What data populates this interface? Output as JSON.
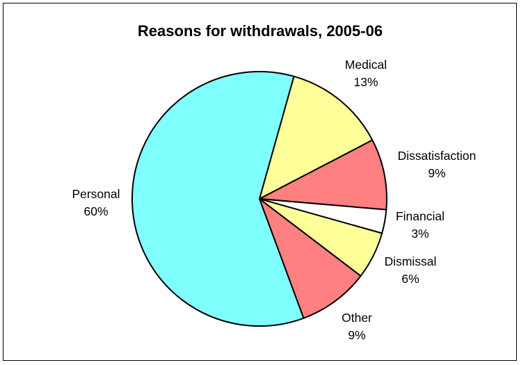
{
  "chart_data": {
    "type": "pie",
    "title": "Reasons for withdrawals, 2005-06",
    "slices": [
      {
        "label": "Medical",
        "value": 13,
        "value_label": "13%",
        "color": "#FFFF99"
      },
      {
        "label": "Dissatisfaction",
        "value": 9,
        "value_label": "9%",
        "color": "#FF8080"
      },
      {
        "label": "Financial",
        "value": 3,
        "value_label": "3%",
        "color": "#FFFFFF"
      },
      {
        "label": "Dismissal",
        "value": 6,
        "value_label": "6%",
        "color": "#FFFF99"
      },
      {
        "label": "Other",
        "value": 9,
        "value_label": "9%",
        "color": "#FF8080"
      },
      {
        "label": "Personal",
        "value": 60,
        "value_label": "60%",
        "color": "#80FFFF"
      }
    ],
    "legend": "none",
    "data_labels": "outside"
  }
}
